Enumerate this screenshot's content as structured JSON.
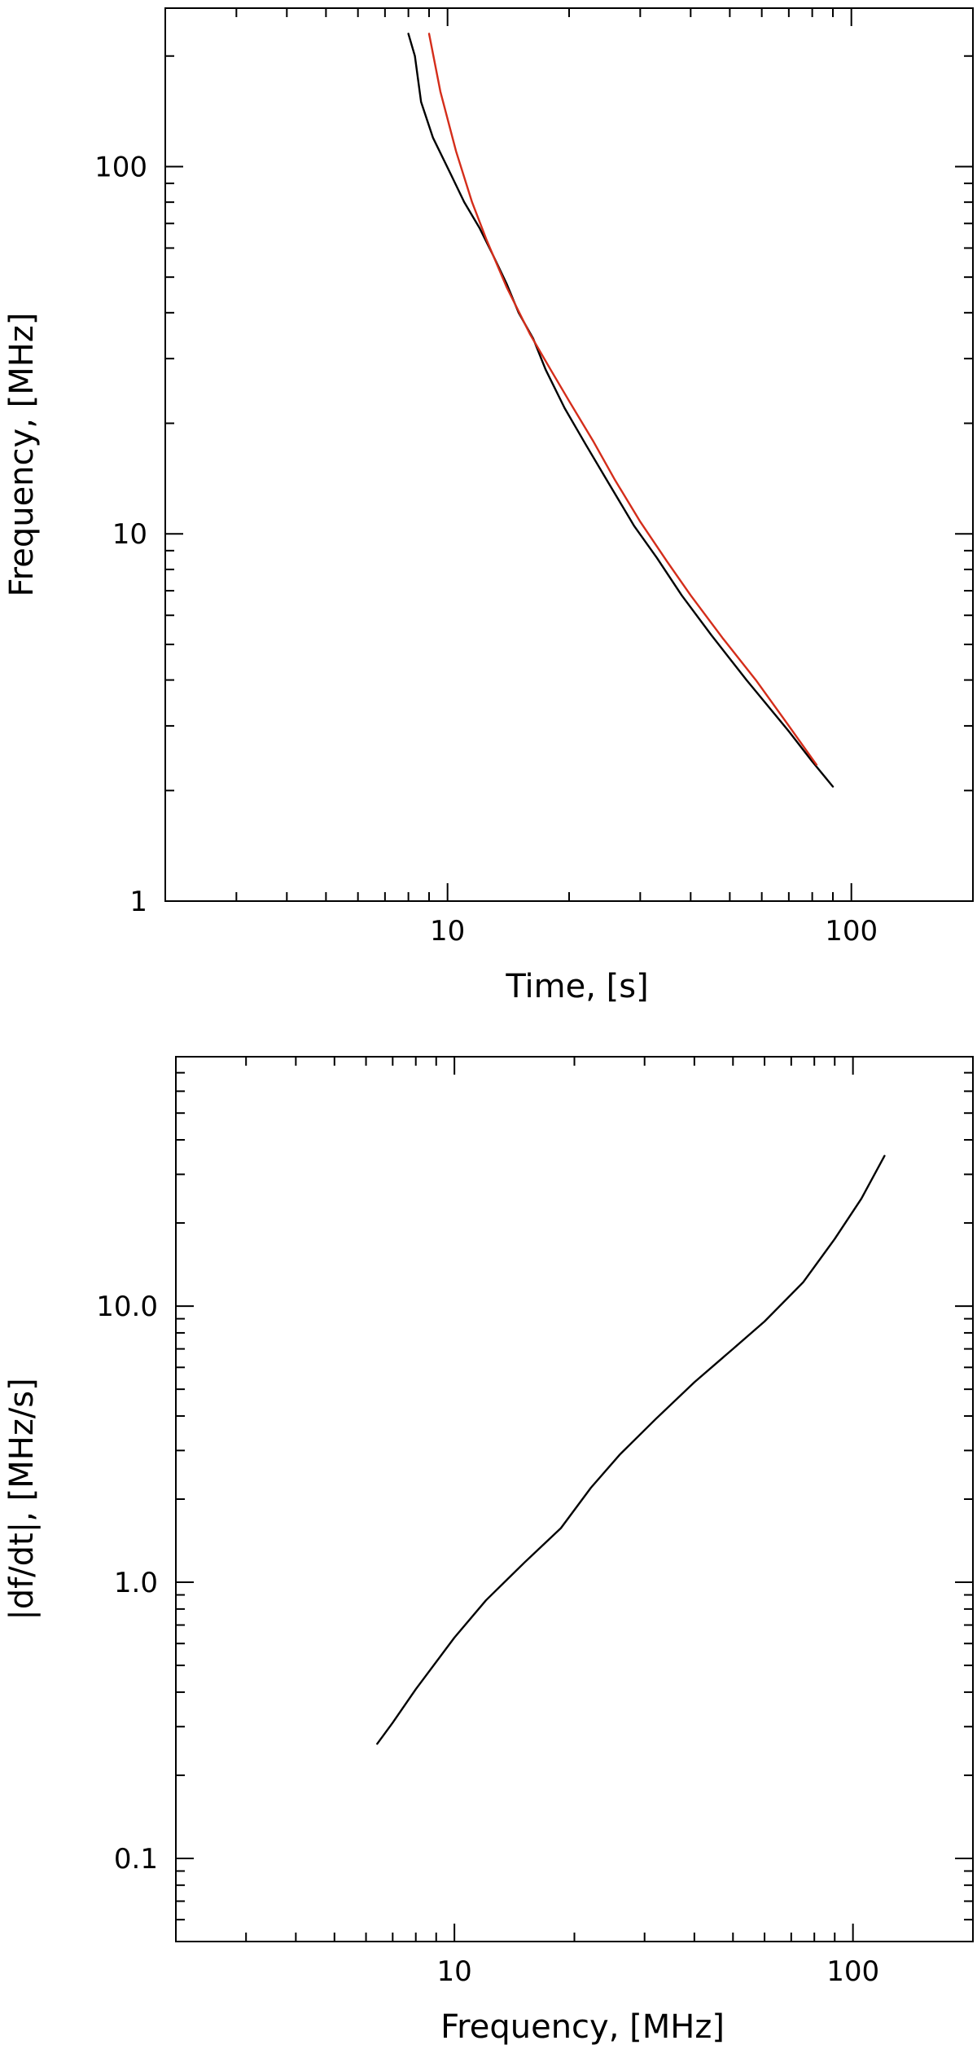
{
  "chart_data": [
    {
      "type": "line",
      "title": "",
      "xlabel": "Time, [s]",
      "ylabel": "Frequency, [MHz]",
      "xscale": "log",
      "yscale": "log",
      "xlim": [
        2,
        200
      ],
      "ylim": [
        1,
        270
      ],
      "x_ticks": [
        {
          "value": 10,
          "label": "10"
        },
        {
          "value": 100,
          "label": "100"
        }
      ],
      "y_ticks": [
        {
          "value": 1,
          "label": "1"
        },
        {
          "value": 10,
          "label": "10"
        },
        {
          "value": 100,
          "label": "100"
        }
      ],
      "series": [
        {
          "color": "#000000",
          "points": [
            [
              8.0,
              230
            ],
            [
              8.3,
              200
            ],
            [
              8.6,
              150
            ],
            [
              9.2,
              120
            ],
            [
              10.2,
              95
            ],
            [
              11.0,
              80
            ],
            [
              12.0,
              68
            ],
            [
              13.0,
              57
            ],
            [
              14.0,
              48
            ],
            [
              15.0,
              40
            ],
            [
              16.3,
              34
            ],
            [
              17.5,
              28
            ],
            [
              19.5,
              22
            ],
            [
              22.0,
              17.5
            ],
            [
              25.0,
              13.8
            ],
            [
              29.0,
              10.5
            ],
            [
              33.0,
              8.6
            ],
            [
              38.0,
              6.8
            ],
            [
              45.0,
              5.3
            ],
            [
              55.0,
              4.0
            ],
            [
              70.0,
              2.9
            ],
            [
              80.0,
              2.4
            ],
            [
              90.0,
              2.05
            ]
          ]
        },
        {
          "color": "#d42d1a",
          "points": [
            [
              9.0,
              230
            ],
            [
              9.6,
              160
            ],
            [
              10.5,
              110
            ],
            [
              11.5,
              80
            ],
            [
              12.5,
              63
            ],
            [
              14.0,
              47
            ],
            [
              16.0,
              35
            ],
            [
              18.0,
              28
            ],
            [
              20.0,
              23
            ],
            [
              23.0,
              17.8
            ],
            [
              26.0,
              14
            ],
            [
              30.0,
              10.8
            ],
            [
              35.0,
              8.4
            ],
            [
              40.0,
              6.8
            ],
            [
              48.0,
              5.2
            ],
            [
              58.0,
              4.0
            ],
            [
              70.0,
              3.0
            ],
            [
              82.0,
              2.35
            ]
          ]
        }
      ]
    },
    {
      "type": "line",
      "title": "",
      "xlabel": "Frequency, [MHz]",
      "ylabel": "|df/dt|, [MHz/s]",
      "xscale": "log",
      "yscale": "log",
      "xlim": [
        2,
        200
      ],
      "ylim": [
        0.05,
        80
      ],
      "x_ticks": [
        {
          "value": 10,
          "label": "10"
        },
        {
          "value": 100,
          "label": "100"
        }
      ],
      "y_ticks": [
        {
          "value": 0.1,
          "label": "0.1"
        },
        {
          "value": 1.0,
          "label": "1.0"
        },
        {
          "value": 10.0,
          "label": "10.0"
        }
      ],
      "series": [
        {
          "color": "#000000",
          "points": [
            [
              6.4,
              0.26
            ],
            [
              7.0,
              0.31
            ],
            [
              8.0,
              0.41
            ],
            [
              10.0,
              0.63
            ],
            [
              12.0,
              0.86
            ],
            [
              15.0,
              1.18
            ],
            [
              18.5,
              1.57
            ],
            [
              22.0,
              2.2
            ],
            [
              26.0,
              2.9
            ],
            [
              32.0,
              3.9
            ],
            [
              40.0,
              5.3
            ],
            [
              50.0,
              7.0
            ],
            [
              60.0,
              8.8
            ],
            [
              75.0,
              12.2
            ],
            [
              90.0,
              17.5
            ],
            [
              105.0,
              24.5
            ],
            [
              120.0,
              35.0
            ]
          ]
        }
      ]
    }
  ]
}
